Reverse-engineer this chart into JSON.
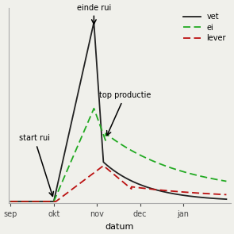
{
  "xlabel": "datum",
  "xtick_labels": [
    "sep",
    "okt",
    "nov",
    "dec",
    "jan"
  ],
  "background_color": "#f0f0eb",
  "line_vet_color": "#222222",
  "line_ei_color": "#22aa22",
  "line_lever_color": "#bb1111",
  "annotation_start_rui": "start rui",
  "annotation_einde_rui": "einde rui",
  "annotation_top": "top productie",
  "legend_vet": "vet",
  "legend_ei": "ei",
  "legend_lever": "lever"
}
